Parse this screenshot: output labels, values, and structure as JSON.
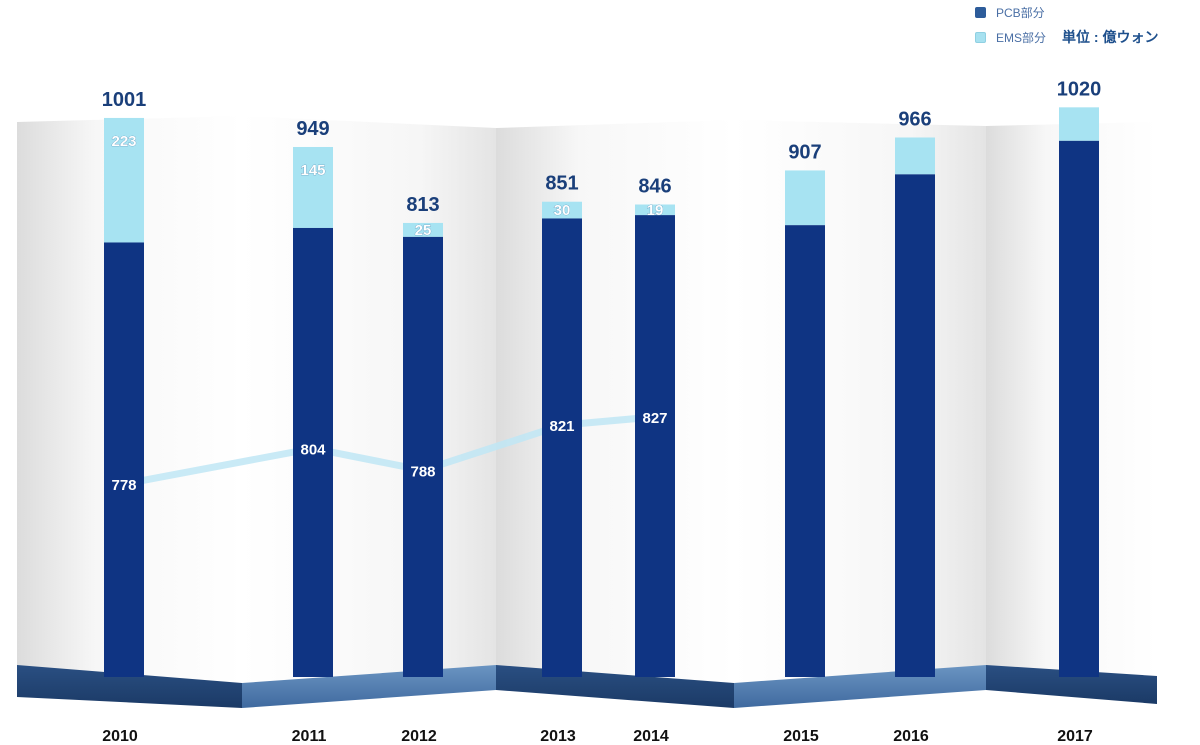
{
  "legend": {
    "pcb_label": "PCB部分",
    "ems_label": "EMS部分",
    "unit": "単位 : 億ウォン"
  },
  "colors": {
    "pcb": "#0f3483",
    "ems": "#a7e3f2",
    "line": "#bfe6f5",
    "total_label": "#1a3f7a"
  },
  "chart_data": {
    "type": "bar",
    "stacked": true,
    "categories": [
      "2010",
      "2011",
      "2012",
      "2013",
      "2014",
      "2015",
      "2016",
      "2017"
    ],
    "series": [
      {
        "name": "PCB部分",
        "values": [
          778,
          804,
          788,
          821,
          827,
          809,
          900,
          960
        ]
      },
      {
        "name": "EMS部分",
        "values": [
          223,
          145,
          25,
          30,
          19,
          98,
          66,
          60
        ]
      }
    ],
    "totals": [
      1001,
      949,
      813,
      851,
      846,
      907,
      966,
      1020
    ],
    "pcb_labels": [
      "778",
      "804",
      "788",
      "821",
      "827",
      "",
      "",
      ""
    ],
    "ems_labels": [
      "223",
      "145",
      "25",
      "30",
      "19",
      "",
      "",
      ""
    ],
    "total_labels": [
      "1001",
      "949",
      "813",
      "851",
      "846",
      "907",
      "966",
      "1020"
    ],
    "trend_line": [
      778,
      804,
      788,
      821,
      827
    ],
    "unit": "単位 : 億ウォン",
    "legend_position": "top-right",
    "grid": false
  }
}
